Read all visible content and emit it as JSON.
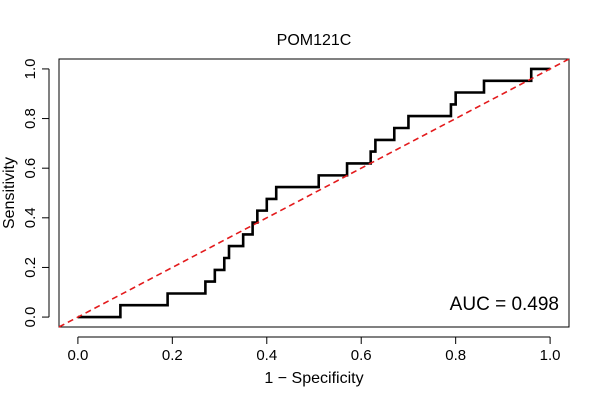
{
  "chart_data": {
    "type": "line",
    "title": "POM121C",
    "xlabel": "1 − Specificity",
    "ylabel": "Sensitivity",
    "xlim": [
      -0.04,
      1.04
    ],
    "ylim": [
      -0.04,
      1.04
    ],
    "x_ticks": [
      0.0,
      0.2,
      0.4,
      0.6,
      0.8,
      1.0
    ],
    "x_tick_labels": [
      "0.0",
      "0.2",
      "0.4",
      "0.6",
      "0.8",
      "1.0"
    ],
    "y_ticks": [
      0.0,
      0.2,
      0.4,
      0.6,
      0.8,
      1.0
    ],
    "y_tick_labels": [
      "0.0",
      "0.2",
      "0.4",
      "0.6",
      "0.8",
      "1.0"
    ],
    "grid": false,
    "annotation": "AUC = 0.498",
    "series": [
      {
        "color": "#000000",
        "line_style": "solid",
        "x": [
          0.0,
          0.09,
          0.09,
          0.19,
          0.19,
          0.27,
          0.27,
          0.29,
          0.29,
          0.31,
          0.31,
          0.32,
          0.32,
          0.35,
          0.35,
          0.37,
          0.37,
          0.38,
          0.38,
          0.4,
          0.4,
          0.41,
          0.41,
          0.42,
          0.42,
          0.43,
          0.43,
          0.51,
          0.51,
          0.57,
          0.57,
          0.62,
          0.62,
          0.63,
          0.63,
          0.64,
          0.64,
          0.67,
          0.67,
          0.7,
          0.7,
          0.79,
          0.79,
          0.8,
          0.8,
          0.86,
          0.86,
          0.96,
          0.96,
          1.0
        ],
        "y": [
          0.0,
          0.0,
          0.048,
          0.048,
          0.095,
          0.095,
          0.143,
          0.143,
          0.19,
          0.19,
          0.238,
          0.238,
          0.286,
          0.286,
          0.333,
          0.333,
          0.381,
          0.381,
          0.429,
          0.429,
          0.476,
          0.476,
          0.476,
          0.476,
          0.524,
          0.524,
          0.524,
          0.524,
          0.571,
          0.571,
          0.619,
          0.619,
          0.667,
          0.667,
          0.714,
          0.714,
          0.714,
          0.714,
          0.762,
          0.762,
          0.81,
          0.81,
          0.857,
          0.857,
          0.905,
          0.905,
          0.952,
          0.952,
          1.0,
          1.0
        ]
      },
      {
        "color": "#e31a1c",
        "line_style": "dashed",
        "x": [
          -0.04,
          1.04
        ],
        "y": [
          -0.04,
          1.04
        ]
      }
    ]
  }
}
